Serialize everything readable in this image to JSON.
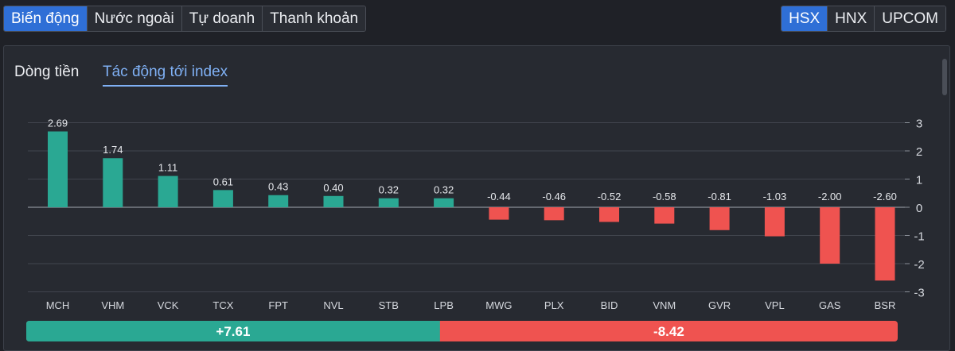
{
  "top_tabs": {
    "left": [
      "Biến động",
      "Nước ngoài",
      "Tự doanh",
      "Thanh khoản"
    ],
    "left_active": 0,
    "right": [
      "HSX",
      "HNX",
      "UPCOM"
    ],
    "right_active": 0
  },
  "panel": {
    "sub_tabs": [
      "Dòng tiền",
      "Tác động tới index"
    ],
    "sub_tab_active": 1
  },
  "colors": {
    "positive": "#2aa893",
    "negative": "#ef5350",
    "active_tab": "#2f6fd6",
    "sub_tab_active": "#7fb0f4"
  },
  "chart_data": {
    "type": "bar",
    "categories": [
      "MCH",
      "VHM",
      "VCK",
      "TCX",
      "FPT",
      "NVL",
      "STB",
      "LPB",
      "MWG",
      "PLX",
      "BID",
      "VNM",
      "GVR",
      "VPL",
      "GAS",
      "BSR"
    ],
    "values": [
      2.69,
      1.74,
      1.11,
      0.61,
      0.43,
      0.4,
      0.32,
      0.32,
      -0.44,
      -0.46,
      -0.52,
      -0.58,
      -0.81,
      -1.03,
      -2.0,
      -2.6
    ],
    "value_labels": [
      "2.69",
      "1.74",
      "1.11",
      "0.61",
      "0.43",
      "0.40",
      "0.32",
      "0.32",
      "-0.44",
      "-0.46",
      "-0.52",
      "-0.58",
      "-0.81",
      "-1.03",
      "-2.00",
      "-2.60"
    ],
    "ylim": [
      -3,
      3
    ],
    "yticks": [
      3,
      2,
      1,
      0,
      -1,
      -2,
      -3
    ],
    "ytick_labels": [
      "3",
      "2",
      "1",
      "0",
      "-1",
      "-2",
      "-3"
    ],
    "y_axis_side": "right",
    "grid": true,
    "summary": {
      "positive_total": 7.61,
      "positive_label": "+7.61",
      "negative_total": -8.42,
      "negative_label": "-8.42"
    }
  }
}
